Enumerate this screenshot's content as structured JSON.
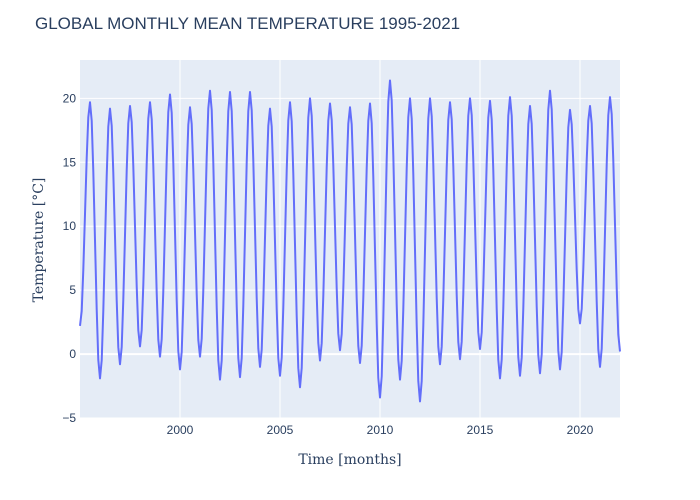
{
  "chart_data": {
    "type": "line",
    "title": "GLOBAL MONTHLY MEAN TEMPERATURE 1995-2021",
    "xlabel": "Time [months]",
    "ylabel": "Temperature [°C]",
    "xlim": [
      1995.0,
      2022.0
    ],
    "ylim": [
      -5,
      23
    ],
    "xticks": [
      2000,
      2005,
      2010,
      2015,
      2020
    ],
    "yticks": [
      -5,
      0,
      5,
      10,
      15,
      20
    ],
    "grid": true,
    "x_unit": "year (monthly samples)",
    "annual": [
      {
        "year": 1995,
        "min": 2.2,
        "max": 19.7
      },
      {
        "year": 1996,
        "min": -1.9,
        "max": 19.2
      },
      {
        "year": 1997,
        "min": -0.8,
        "max": 19.4
      },
      {
        "year": 1998,
        "min": 0.6,
        "max": 19.7
      },
      {
        "year": 1999,
        "min": -0.2,
        "max": 20.3
      },
      {
        "year": 2000,
        "min": -1.2,
        "max": 19.3
      },
      {
        "year": 2001,
        "min": -0.2,
        "max": 20.6
      },
      {
        "year": 2002,
        "min": -2.0,
        "max": 20.5
      },
      {
        "year": 2003,
        "min": -1.8,
        "max": 20.5
      },
      {
        "year": 2004,
        "min": -1.0,
        "max": 19.2
      },
      {
        "year": 2005,
        "min": -1.7,
        "max": 19.7
      },
      {
        "year": 2006,
        "min": -2.6,
        "max": 20.0
      },
      {
        "year": 2007,
        "min": -0.5,
        "max": 19.6
      },
      {
        "year": 2008,
        "min": 0.3,
        "max": 19.3
      },
      {
        "year": 2009,
        "min": -0.7,
        "max": 19.6
      },
      {
        "year": 2010,
        "min": -3.4,
        "max": 21.4
      },
      {
        "year": 2011,
        "min": -2.0,
        "max": 20.0
      },
      {
        "year": 2012,
        "min": -3.7,
        "max": 20.0
      },
      {
        "year": 2013,
        "min": -0.8,
        "max": 19.7
      },
      {
        "year": 2014,
        "min": -0.4,
        "max": 20.0
      },
      {
        "year": 2015,
        "min": 0.4,
        "max": 19.8
      },
      {
        "year": 2016,
        "min": -1.9,
        "max": 20.1
      },
      {
        "year": 2017,
        "min": -1.7,
        "max": 19.4
      },
      {
        "year": 2018,
        "min": -1.5,
        "max": 20.6
      },
      {
        "year": 2019,
        "min": -1.2,
        "max": 19.1
      },
      {
        "year": 2020,
        "min": 2.4,
        "max": 19.4
      },
      {
        "year": 2021,
        "min": -1.0,
        "max": 20.1
      },
      {
        "year": 2022,
        "min": 0.2,
        "max": 0.2
      }
    ],
    "series": [
      {
        "name": "",
        "color": "#636efa"
      }
    ]
  }
}
